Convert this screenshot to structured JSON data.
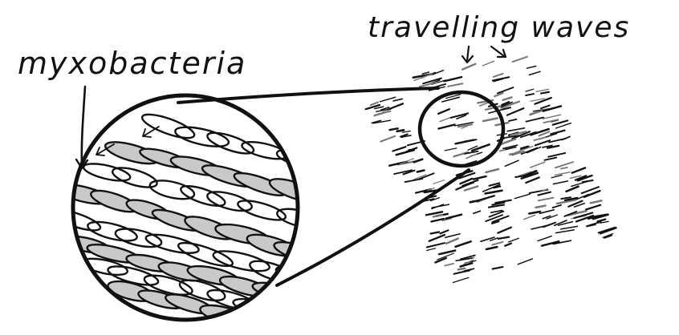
{
  "labels": {
    "left": "myxobacteria",
    "right": "travelling waves"
  },
  "colors": {
    "ink": "#111111",
    "shade": "#c9c9c9",
    "background": "#ffffff"
  }
}
